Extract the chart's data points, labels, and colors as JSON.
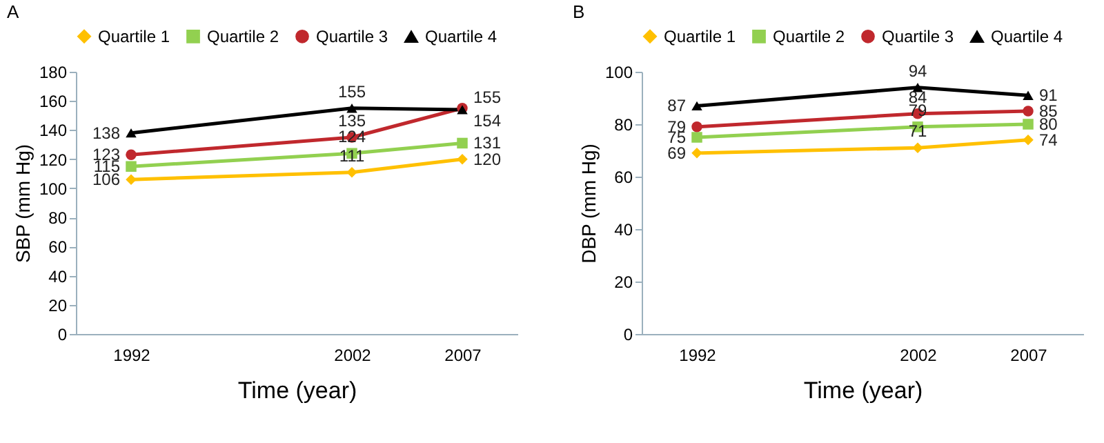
{
  "chart_data": [
    {
      "type": "line",
      "title": "A",
      "xlabel": "Time (year)",
      "ylabel": "SBP (mm Hg)",
      "x": [
        1992,
        2002,
        2007
      ],
      "xlim": [
        1989.5,
        2009.5
      ],
      "xticks": [
        1992,
        2002,
        2007
      ],
      "ylim": [
        0,
        180
      ],
      "yticks": [
        0,
        20,
        40,
        60,
        80,
        100,
        120,
        140,
        160,
        180
      ],
      "grid": false,
      "legend": "top",
      "data_labels": true,
      "line_style": "solid",
      "series": [
        {
          "name": "Quartile 1",
          "color": "#ffc000",
          "marker": "diamond",
          "values": [
            106,
            111,
            120
          ]
        },
        {
          "name": "Quartile 2",
          "color": "#92d050",
          "marker": "square",
          "values": [
            115,
            124,
            131
          ]
        },
        {
          "name": "Quartile 3",
          "color": "#c0282d",
          "marker": "circle",
          "values": [
            123,
            135,
            155
          ]
        },
        {
          "name": "Quartile 4",
          "color": "#000000",
          "marker": "triangle",
          "values": [
            138,
            155,
            154
          ]
        }
      ]
    },
    {
      "type": "line",
      "title": "B",
      "xlabel": "Time (year)",
      "ylabel": "DBP (mm Hg)",
      "x": [
        1992,
        2002,
        2007
      ],
      "xlim": [
        1989.5,
        2009.5
      ],
      "xticks": [
        1992,
        2002,
        2007
      ],
      "ylim": [
        0,
        100
      ],
      "yticks": [
        0,
        20,
        40,
        60,
        80,
        100
      ],
      "grid": false,
      "legend": "top",
      "data_labels": true,
      "line_style": "solid",
      "series": [
        {
          "name": "Quartile 1",
          "color": "#ffc000",
          "marker": "diamond",
          "values": [
            69,
            71,
            74
          ]
        },
        {
          "name": "Quartile 2",
          "color": "#92d050",
          "marker": "square",
          "values": [
            75,
            79,
            80
          ]
        },
        {
          "name": "Quartile 3",
          "color": "#c0282d",
          "marker": "circle",
          "values": [
            79,
            84,
            85
          ]
        },
        {
          "name": "Quartile 4",
          "color": "#000000",
          "marker": "triangle",
          "values": [
            87,
            94,
            91
          ]
        }
      ]
    }
  ]
}
